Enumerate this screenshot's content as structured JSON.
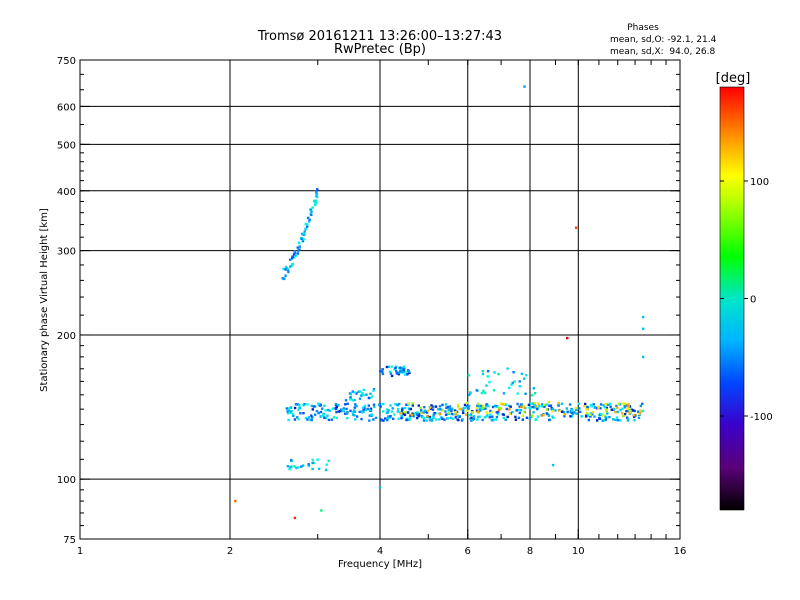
{
  "chart_data": {
    "type": "scatter",
    "title": "Tromsø 20161211 13:26:00–13:27:43",
    "subtitle": "RwPretec (Bp)",
    "stats": {
      "heading": "Phases",
      "line_o": "mean, sd,O: -92.1, 21.4",
      "line_x": "mean, sd,X:  94.0, 26.8"
    },
    "xlabel": "Frequency [MHz]",
    "ylabel": "Stationary phase Virtual Height [km]",
    "xscale": "log",
    "yscale": "log",
    "xlim": [
      1,
      16
    ],
    "ylim": [
      75,
      750
    ],
    "xticks": [
      1,
      2,
      4,
      6,
      8,
      10,
      16
    ],
    "xtick_labels": [
      "1",
      "2",
      "4",
      "6",
      "8",
      "10",
      "16"
    ],
    "x_gridlines": [
      2,
      4,
      6,
      8,
      10
    ],
    "yticks": [
      75,
      100,
      200,
      300,
      400,
      500,
      600,
      750
    ],
    "ytick_labels": [
      "75",
      "100",
      "200",
      "300",
      "400",
      "500",
      "600",
      "750"
    ],
    "y_gridlines": [
      100,
      200,
      300,
      400,
      500,
      600
    ],
    "grid": true,
    "colorbar": {
      "label": "[deg]",
      "range": [
        -180,
        180
      ],
      "ticks": [
        100,
        0,
        -100
      ],
      "tick_labels": [
        "100",
        "0",
        "-100"
      ],
      "placement": "right"
    },
    "clusters": [
      {
        "name": "F-layer trace",
        "type": "curve",
        "x0": 2.55,
        "x1": 3.02,
        "y0": 268,
        "y1": 405,
        "count": 70,
        "phase": -100,
        "spread": 0.012
      },
      {
        "name": "E-layer trace",
        "type": "band",
        "x0": 2.6,
        "x1": 13.6,
        "y": 138,
        "count": 520,
        "phase": -110,
        "spread": 0.018
      },
      {
        "name": "Es segment",
        "type": "band",
        "x0": 4.0,
        "x1": 4.6,
        "y": 168,
        "count": 40,
        "phase": -110,
        "spread": 0.01
      },
      {
        "name": "Upper segment 3.4",
        "type": "band",
        "x0": 3.4,
        "x1": 3.9,
        "y": 150,
        "count": 25,
        "phase": -100,
        "spread": 0.012
      },
      {
        "name": "Upper segment 6-8",
        "type": "band",
        "x0": 6.0,
        "x1": 8.2,
        "y": 160,
        "count": 35,
        "phase": -90,
        "spread": 0.03
      },
      {
        "name": "Low echo 2.6-3.2",
        "type": "band",
        "x0": 2.6,
        "x1": 3.2,
        "y": 107,
        "count": 22,
        "phase": -90,
        "spread": 0.012
      },
      {
        "name": "Mixed phase echoes",
        "type": "band",
        "x0": 4.4,
        "x1": 13.4,
        "y": 140,
        "count": 90,
        "phase": 60,
        "spread": 0.015
      }
    ],
    "isolated_points": [
      {
        "x": 7.8,
        "y": 660,
        "phase": -110
      },
      {
        "x": 9.9,
        "y": 335,
        "phase": 110
      },
      {
        "x": 9.5,
        "y": 197,
        "phase": 140
      },
      {
        "x": 13.5,
        "y": 218,
        "phase": -100
      },
      {
        "x": 13.5,
        "y": 206,
        "phase": -100
      },
      {
        "x": 13.5,
        "y": 180,
        "phase": -100
      },
      {
        "x": 8.9,
        "y": 107,
        "phase": -100
      },
      {
        "x": 4.0,
        "y": 96,
        "phase": -100
      },
      {
        "x": 2.05,
        "y": 90,
        "phase": 100
      },
      {
        "x": 2.7,
        "y": 83,
        "phase": 120
      },
      {
        "x": 3.05,
        "y": 86,
        "phase": -50
      }
    ]
  }
}
